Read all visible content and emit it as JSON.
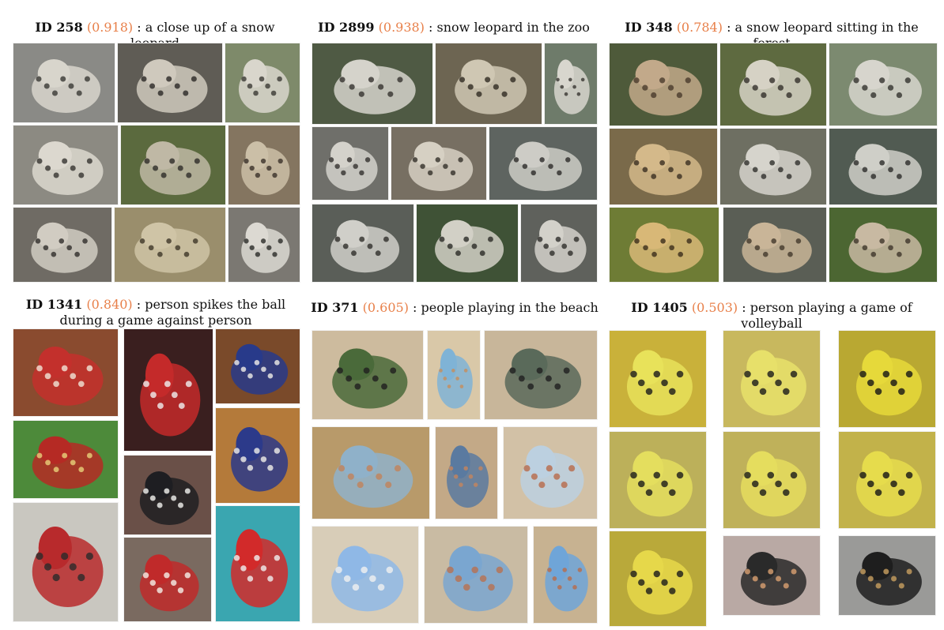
{
  "panels": [
    {
      "id_label": "ID 258",
      "score": "(0.918)",
      "text": ": a close up of a snow leopard",
      "tiles": [
        {
          "subject": "snow leopard",
          "fill": "#8a8a86",
          "accent": "#d8d5cc",
          "spot": "#3a3835"
        },
        {
          "subject": "snow leopard",
          "fill": "#5f5c55",
          "accent": "#cfc9bd",
          "spot": "#2a2826"
        },
        {
          "subject": "snow leopard",
          "fill": "#7e8a6a",
          "accent": "#d9d6cc",
          "spot": "#3b3a35"
        },
        {
          "subject": "snow leopard",
          "fill": "#8c8a82",
          "accent": "#dcd8cf",
          "spot": "#35332f"
        },
        {
          "subject": "snow leopard",
          "fill": "#5b6a3e",
          "accent": "#bfb8a5",
          "spot": "#2e2c28"
        },
        {
          "subject": "snow leopard",
          "fill": "#847560",
          "accent": "#cbbfa7",
          "spot": "#3a3129"
        },
        {
          "subject": "snow leopard",
          "fill": "#6f6b64",
          "accent": "#d1ccc2",
          "spot": "#2f2d2a"
        },
        {
          "subject": "snow leopard",
          "fill": "#9a8e6c",
          "accent": "#cfc4a6",
          "spot": "#3d3628"
        },
        {
          "subject": "snow leopard",
          "fill": "#7b7872",
          "accent": "#dcd9d2",
          "spot": "#2b2a28"
        }
      ]
    },
    {
      "id_label": "ID 2899",
      "score": "(0.938)",
      "text": ": snow leopard in the zoo",
      "tiles": [
        {
          "subject": "snow leopard",
          "fill": "#4f5a44",
          "accent": "#d5d3cb",
          "spot": "#34322e"
        },
        {
          "subject": "snow leopard",
          "fill": "#6d6552",
          "accent": "#cfc7b3",
          "spot": "#2f2a22"
        },
        {
          "subject": "snow leopard",
          "fill": "#6e7b6a",
          "accent": "#d8d6ce",
          "spot": "#383632"
        },
        {
          "subject": "snow leopard",
          "fill": "#6f6f6a",
          "accent": "#d4d2cb",
          "spot": "#33312e"
        },
        {
          "subject": "snow leopard",
          "fill": "#776f62",
          "accent": "#d6d0c3",
          "spot": "#332f29"
        },
        {
          "subject": "snow leopard",
          "fill": "#5e6460",
          "accent": "#cdccc6",
          "spot": "#2c2b29"
        },
        {
          "subject": "snow leopard",
          "fill": "#5a5e58",
          "accent": "#d0cfc9",
          "spot": "#2f2e2b"
        },
        {
          "subject": "snow leopard",
          "fill": "#3f5236",
          "accent": "#d2d0c6",
          "spot": "#2b2a27"
        },
        {
          "subject": "snow leopard",
          "fill": "#5f615c",
          "accent": "#d3d1ca",
          "spot": "#2e2d2a"
        }
      ]
    },
    {
      "id_label": "ID 348",
      "score": "(0.784)",
      "text": ": a snow leopard sitting in the forest",
      "tiles": [
        {
          "subject": "lynx",
          "fill": "#4e5a3a",
          "accent": "#c2a98a",
          "spot": "#4a3b2c"
        },
        {
          "subject": "snow leopard",
          "fill": "#5e6a40",
          "accent": "#d6d2c5",
          "spot": "#33302b"
        },
        {
          "subject": "snow leopard",
          "fill": "#7c8a70",
          "accent": "#d7d5cd",
          "spot": "#33322e"
        },
        {
          "subject": "cheetah",
          "fill": "#7a6a4a",
          "accent": "#d4b98a",
          "spot": "#3a2e20"
        },
        {
          "subject": "snow leopard",
          "fill": "#6e6f62",
          "accent": "#d6d4cc",
          "spot": "#30302c"
        },
        {
          "subject": "snow leopard",
          "fill": "#515b52",
          "accent": "#cfcfc8",
          "spot": "#2c2c2a"
        },
        {
          "subject": "cheetah",
          "fill": "#6e7c35",
          "accent": "#d8b877",
          "spot": "#3b2d1a"
        },
        {
          "subject": "lynx",
          "fill": "#5a5e55",
          "accent": "#c9b598",
          "spot": "#42382c"
        },
        {
          "subject": "lynx",
          "fill": "#4c6632",
          "accent": "#c8b9a2",
          "spot": "#3f362b"
        }
      ]
    },
    {
      "id_label": "ID 1341",
      "score": "(0.840)",
      "text": ": person spikes the ball during a game against person",
      "tiles": [
        {
          "subject": "volleyball",
          "fill": "#8a4b2f",
          "accent": "#c3302c",
          "spot": "#f1e6d8"
        },
        {
          "subject": "volleyball",
          "fill": "#3a1f1f",
          "accent": "#c42a2a",
          "spot": "#f0f0f0"
        },
        {
          "subject": "volleyball",
          "fill": "#7a4a2a",
          "accent": "#283a8a",
          "spot": "#f0eee8"
        },
        {
          "subject": "volleyball",
          "fill": "#4d8a3a",
          "accent": "#b52a24",
          "spot": "#e9d27a"
        },
        {
          "subject": "volleyball",
          "fill": "#b47a3a",
          "accent": "#2c3a8a",
          "spot": "#f0efe8"
        },
        {
          "subject": "volleyball",
          "fill": "#6a5048",
          "accent": "#1e1e22",
          "spot": "#f2f2f0"
        },
        {
          "subject": "volleyball",
          "fill": "#c9c7c0",
          "accent": "#b82a2c",
          "spot": "#2a2a2a"
        },
        {
          "subject": "volleyball",
          "fill": "#7a6a60",
          "accent": "#c02a2a",
          "spot": "#f5f0e8"
        },
        {
          "subject": "volleyball",
          "fill": "#3aa6b0",
          "accent": "#d22a2a",
          "spot": "#f0f0f0"
        }
      ]
    },
    {
      "id_label": "ID 371",
      "score": "(0.605)",
      "text": ": people playing in the beach",
      "tiles": [
        {
          "subject": "beach",
          "fill": "#cdbb9e",
          "accent": "#4a6a3a",
          "spot": "#1f1f1f"
        },
        {
          "subject": "beach",
          "fill": "#d9c8a8",
          "accent": "#7fb3d6",
          "spot": "#c78d5a"
        },
        {
          "subject": "beach",
          "fill": "#c8b69a",
          "accent": "#5a6a5a",
          "spot": "#1f1f1f"
        },
        {
          "subject": "beach",
          "fill": "#b89a6a",
          "accent": "#8fb1c9",
          "spot": "#c2825a"
        },
        {
          "subject": "beach",
          "fill": "#c3a987",
          "accent": "#5a7aa0",
          "spot": "#c6855c"
        },
        {
          "subject": "beach",
          "fill": "#d2c1a6",
          "accent": "#bcd0e0",
          "spot": "#b86a4a"
        },
        {
          "subject": "beach",
          "fill": "#d8cdb8",
          "accent": "#8fb8e6",
          "spot": "#f0f0f0"
        },
        {
          "subject": "beach",
          "fill": "#c9bba3",
          "accent": "#7aa6d0",
          "spot": "#b87050"
        },
        {
          "subject": "beach",
          "fill": "#c7b291",
          "accent": "#6fa5d8",
          "spot": "#b86b4a"
        }
      ]
    },
    {
      "id_label": "ID 1405",
      "score": "(0.503)",
      "text": ": person playing a game of volleyball",
      "tiles": [
        {
          "subject": "gym",
          "fill": "#c9b13a",
          "accent": "#e8e25a",
          "spot": "#1a1a1a"
        },
        {
          "subject": "gym",
          "fill": "#c8b85e",
          "accent": "#e7e06a",
          "spot": "#1a1a1a"
        },
        {
          "subject": "gym",
          "fill": "#b9a832",
          "accent": "#e6d93a",
          "spot": "#151515"
        },
        {
          "subject": "gym",
          "fill": "#bcb05a",
          "accent": "#e4de5e",
          "spot": "#1a1a1a"
        },
        {
          "subject": "gym",
          "fill": "#bfb15a",
          "accent": "#e5dd5e",
          "spot": "#1a1a1a"
        },
        {
          "subject": "gym",
          "fill": "#c2b24a",
          "accent": "#e6dc4c",
          "spot": "#151515"
        },
        {
          "subject": "gym",
          "fill": "#b9a93a",
          "accent": "#e6d84a",
          "spot": "#1a1a1a"
        },
        {
          "subject": "dog",
          "fill": "#b9a9a4",
          "accent": "#2a2a2a",
          "spot": "#d9a070"
        },
        {
          "subject": "pen",
          "fill": "#9a9a98",
          "accent": "#1e1e1e",
          "spot": "#c9a060"
        }
      ]
    }
  ]
}
